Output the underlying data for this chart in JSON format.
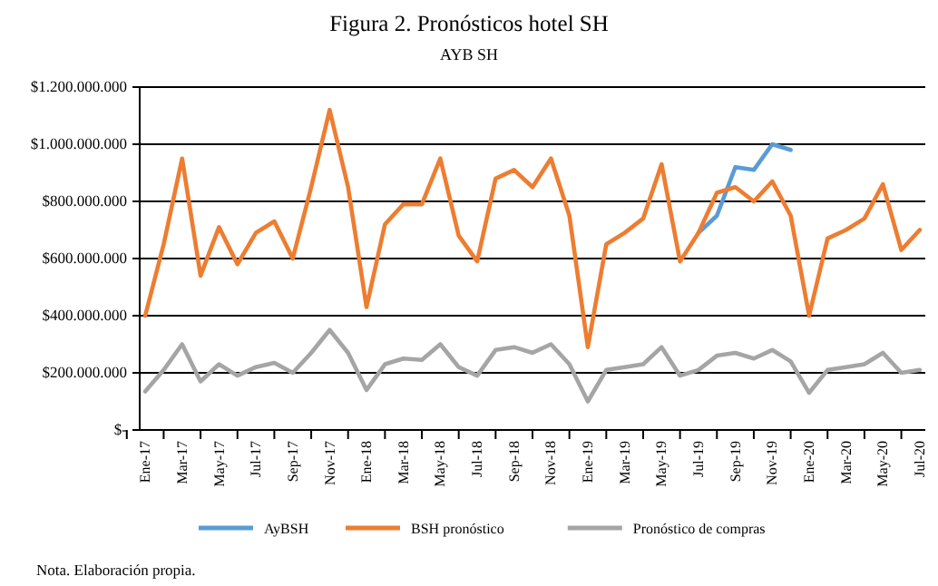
{
  "chart_data": {
    "type": "line",
    "title": "Figura 2. Pronósticos hotel SH",
    "subtitle": "AYB SH",
    "categories": [
      "Ene-17",
      null,
      "Mar-17",
      null,
      "May-17",
      null,
      "Jul-17",
      null,
      "Sep-17",
      null,
      "Nov-17",
      null,
      "Ene-18",
      null,
      "Mar-18",
      null,
      "May-18",
      null,
      "Jul-18",
      null,
      "Sep-18",
      null,
      "Nov-18",
      null,
      "Ene-19",
      null,
      "Mar-19",
      null,
      "May-19",
      null,
      "Jul-19",
      null,
      "Sep-19",
      null,
      "Nov-19",
      null,
      "Ene-20",
      null,
      "Mar-20",
      null,
      "May-20",
      null,
      "Jul-20"
    ],
    "series": [
      {
        "name": "AyBSH",
        "color": "#5b9bd5",
        "values": [
          null,
          null,
          null,
          null,
          null,
          null,
          null,
          null,
          null,
          null,
          null,
          null,
          null,
          null,
          null,
          null,
          null,
          null,
          null,
          null,
          null,
          null,
          null,
          null,
          null,
          null,
          null,
          null,
          null,
          null,
          690000000,
          750000000,
          920000000,
          910000000,
          1000000000,
          980000000,
          null,
          null,
          null,
          null,
          null,
          null,
          null
        ]
      },
      {
        "name": "BSH pronóstico",
        "color": "#ed7d31",
        "values": [
          400000000,
          650000000,
          950000000,
          540000000,
          710000000,
          580000000,
          690000000,
          730000000,
          600000000,
          850000000,
          1120000000,
          850000000,
          430000000,
          720000000,
          790000000,
          790000000,
          950000000,
          680000000,
          590000000,
          880000000,
          910000000,
          850000000,
          950000000,
          750000000,
          290000000,
          650000000,
          690000000,
          740000000,
          930000000,
          590000000,
          690000000,
          830000000,
          850000000,
          800000000,
          870000000,
          750000000,
          400000000,
          670000000,
          700000000,
          740000000,
          860000000,
          630000000,
          700000000
        ]
      },
      {
        "name": "Pronóstico de compras",
        "color": "#a5a5a5",
        "values": [
          135000000,
          210000000,
          300000000,
          170000000,
          230000000,
          190000000,
          220000000,
          235000000,
          200000000,
          270000000,
          350000000,
          270000000,
          140000000,
          230000000,
          250000000,
          245000000,
          300000000,
          220000000,
          190000000,
          280000000,
          290000000,
          270000000,
          300000000,
          230000000,
          100000000,
          210000000,
          220000000,
          230000000,
          290000000,
          190000000,
          210000000,
          260000000,
          270000000,
          250000000,
          280000000,
          240000000,
          130000000,
          210000000,
          220000000,
          230000000,
          270000000,
          200000000,
          210000000
        ]
      }
    ],
    "ylim": [
      0,
      1200000000
    ],
    "yticks": [
      {
        "value": 0,
        "label": "$-"
      },
      {
        "value": 200000000,
        "label": "$200.000.000"
      },
      {
        "value": 400000000,
        "label": "$400.000.000"
      },
      {
        "value": 600000000,
        "label": "$600.000.000"
      },
      {
        "value": 800000000,
        "label": "$800.000.000"
      },
      {
        "value": 1000000000,
        "label": "$1.000.000.000"
      },
      {
        "value": 1200000000,
        "label": "$1.200.000.000"
      }
    ],
    "grid": "y",
    "legend": "bottom",
    "annotations": [
      "Nota. Elaboración propia."
    ]
  }
}
